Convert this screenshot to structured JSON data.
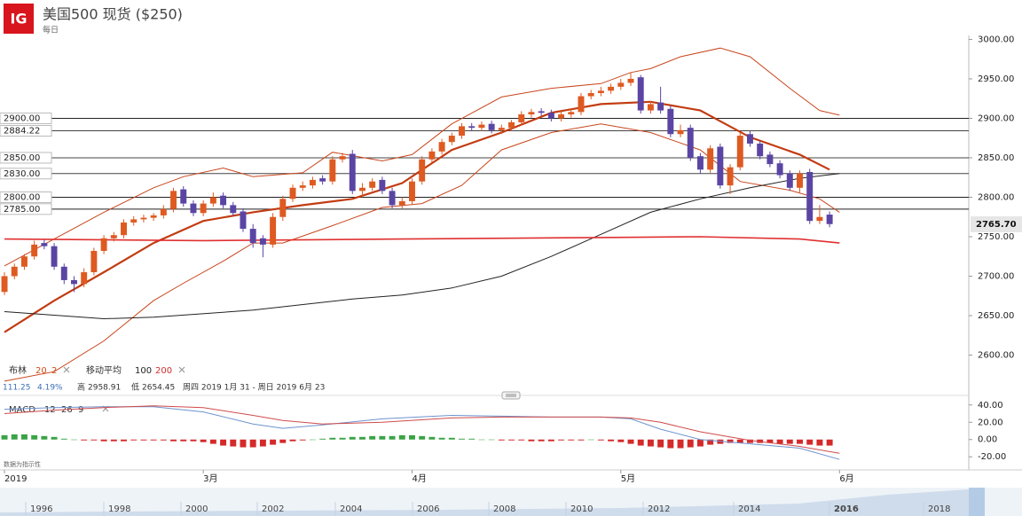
{
  "ui": {
    "logo": "IG",
    "title": "美国500 现货 ($250)",
    "subtitle": "每日",
    "legend_bb": "布林",
    "legend_bb_period": 20,
    "legend_bb_dev": 2,
    "legend_ma": "移动平均",
    "legend_ma_fast": 100,
    "legend_ma_slow": 200,
    "stats_change": "111.25",
    "stats_pct": "4.19%",
    "stats_high_label": "高",
    "stats_high": "2958.91",
    "stats_low_label": "低",
    "stats_low": "2654.45",
    "stats_range": "周四 2019 1月 31 - 周日 2019 6月 23",
    "macd_label": "MACD",
    "macd_fast": 12,
    "macd_slow": 26,
    "macd_signal": 9,
    "note": "数据为指示性",
    "navigator_years": [
      1996,
      1998,
      2000,
      2002,
      2004,
      2006,
      2008,
      2010,
      2012,
      2014,
      2016,
      2018
    ]
  },
  "chart_data": [
    {
      "type": "candlestick",
      "up_color": "#de5a21",
      "down_color": "#5a45a4",
      "xlim": [
        -0.45,
        97
      ],
      "ylim": [
        2550,
        3005
      ],
      "xticks": [
        {
          "value": 0,
          "label": "2019"
        },
        {
          "value": 20,
          "label": "3月"
        },
        {
          "value": 41,
          "label": "4月"
        },
        {
          "value": 62,
          "label": "5月"
        },
        {
          "value": 84,
          "label": "6月"
        }
      ],
      "yticks": [
        {
          "value": 2600,
          "label": "2600.00"
        },
        {
          "value": 2650,
          "label": "2650.00"
        },
        {
          "value": 2700,
          "label": "2700.00"
        },
        {
          "value": 2750,
          "label": "2750.00"
        },
        {
          "value": 2800,
          "label": "2800.00"
        },
        {
          "value": 2850,
          "label": "2850.00"
        },
        {
          "value": 2900,
          "label": "2900.00"
        },
        {
          "value": 2950,
          "label": "2950.00"
        },
        {
          "value": 3000,
          "label": "3000.00"
        }
      ],
      "levels": [
        {
          "value": 2900,
          "label": "2900.00",
          "color": "#222"
        },
        {
          "value": 2884.22,
          "label": "2884.22",
          "color": "#444"
        },
        {
          "value": 2850,
          "label": "2850.00",
          "color": "#444"
        },
        {
          "value": 2830,
          "label": "2830.00",
          "color": "#444"
        },
        {
          "value": 2800,
          "label": "2800.00",
          "color": "#222"
        },
        {
          "value": 2785,
          "label": "2785.00",
          "color": "#222"
        }
      ],
      "last": {
        "value": 2765.7,
        "label": "2765.70"
      },
      "open": [
        2680,
        2700,
        2712,
        2725,
        2742,
        2738,
        2712,
        2695,
        2690,
        2705,
        2732,
        2748,
        2752,
        2768,
        2772,
        2774,
        2777,
        2785,
        2810,
        2792,
        2780,
        2792,
        2802,
        2790,
        2782,
        2760,
        2748,
        2740,
        2775,
        2798,
        2812,
        2815,
        2824,
        2820,
        2848,
        2855,
        2808,
        2812,
        2822,
        2808,
        2790,
        2795,
        2820,
        2848,
        2858,
        2870,
        2878,
        2890,
        2888,
        2893,
        2885,
        2888,
        2895,
        2905,
        2909,
        2907,
        2900,
        2905,
        2908,
        2928,
        2932,
        2935,
        2940,
        2945,
        2952,
        2910,
        2920,
        2912,
        2880,
        2888,
        2852,
        2835,
        2864,
        2815,
        2838,
        2880,
        2868,
        2854,
        2843,
        2830,
        2812,
        2832,
        2770,
        2778
      ],
      "high": [
        2705,
        2716,
        2728,
        2745,
        2746,
        2742,
        2716,
        2700,
        2710,
        2736,
        2752,
        2756,
        2772,
        2776,
        2778,
        2780,
        2790,
        2812,
        2814,
        2796,
        2796,
        2806,
        2806,
        2794,
        2786,
        2766,
        2752,
        2780,
        2802,
        2816,
        2820,
        2826,
        2828,
        2852,
        2856,
        2860,
        2818,
        2824,
        2826,
        2812,
        2800,
        2824,
        2852,
        2862,
        2874,
        2882,
        2894,
        2894,
        2896,
        2897,
        2892,
        2898,
        2909,
        2912,
        2913,
        2911,
        2909,
        2912,
        2932,
        2936,
        2940,
        2944,
        2950,
        2958,
        2955,
        2922,
        2940,
        2916,
        2892,
        2892,
        2856,
        2866,
        2868,
        2842,
        2882,
        2884,
        2872,
        2858,
        2847,
        2834,
        2834,
        2836,
        2790,
        2782
      ],
      "low": [
        2676,
        2696,
        2708,
        2721,
        2734,
        2708,
        2690,
        2680,
        2686,
        2701,
        2728,
        2744,
        2748,
        2764,
        2768,
        2770,
        2773,
        2781,
        2788,
        2776,
        2776,
        2788,
        2786,
        2776,
        2756,
        2736,
        2724,
        2736,
        2770,
        2794,
        2808,
        2811,
        2816,
        2816,
        2844,
        2804,
        2800,
        2808,
        2804,
        2786,
        2786,
        2791,
        2816,
        2844,
        2854,
        2866,
        2874,
        2884,
        2884,
        2881,
        2880,
        2884,
        2891,
        2901,
        2903,
        2896,
        2896,
        2901,
        2904,
        2924,
        2928,
        2931,
        2936,
        2941,
        2906,
        2906,
        2906,
        2876,
        2876,
        2846,
        2830,
        2831,
        2811,
        2804,
        2834,
        2864,
        2848,
        2838,
        2824,
        2808,
        2806,
        2766,
        2766,
        2762
      ],
      "close": [
        2700,
        2712,
        2725,
        2740,
        2738,
        2712,
        2695,
        2690,
        2705,
        2732,
        2748,
        2752,
        2768,
        2772,
        2774,
        2777,
        2785,
        2808,
        2792,
        2780,
        2792,
        2800,
        2790,
        2780,
        2760,
        2742,
        2740,
        2775,
        2798,
        2812,
        2815,
        2822,
        2820,
        2848,
        2852,
        2808,
        2812,
        2820,
        2808,
        2790,
        2795,
        2820,
        2848,
        2858,
        2870,
        2878,
        2890,
        2888,
        2892,
        2885,
        2888,
        2895,
        2905,
        2908,
        2907,
        2900,
        2905,
        2908,
        2928,
        2932,
        2935,
        2940,
        2945,
        2950,
        2910,
        2918,
        2910,
        2880,
        2885,
        2850,
        2835,
        2862,
        2815,
        2838,
        2878,
        2868,
        2852,
        2842,
        2828,
        2812,
        2830,
        2770,
        2775,
        2766
      ],
      "overlays": [
        {
          "color": "#c8461c",
          "width": 1,
          "x": [
            0,
            5,
            10,
            15,
            18,
            22,
            25,
            30,
            33,
            38,
            41,
            45,
            50,
            55,
            60,
            63,
            65,
            68,
            72,
            75,
            79,
            82,
            84
          ],
          "values": [
            2713,
            2747,
            2781,
            2812,
            2826,
            2837,
            2826,
            2831,
            2857,
            2846,
            2854,
            2893,
            2927,
            2938,
            2944,
            2958,
            2963,
            2978,
            2989,
            2978,
            2938,
            2910,
            2904
          ]
        },
        {
          "color": "#c8461c",
          "width": 1,
          "x": [
            0,
            5,
            10,
            15,
            18,
            22,
            25,
            28,
            33,
            38,
            42,
            46,
            50,
            55,
            60,
            65,
            70,
            74,
            79,
            82,
            84
          ],
          "values": [
            2567,
            2579,
            2618,
            2669,
            2691,
            2719,
            2742,
            2742,
            2764,
            2787,
            2792,
            2815,
            2860,
            2882,
            2893,
            2882,
            2860,
            2820,
            2809,
            2798,
            2781
          ]
        },
        {
          "color": "#c23c12",
          "width": 2.2,
          "x": [
            0,
            5,
            10,
            15,
            20,
            25,
            30,
            35,
            40,
            45,
            50,
            55,
            60,
            65,
            70,
            75,
            80,
            83
          ],
          "values": [
            2629,
            2669,
            2705,
            2742,
            2770,
            2781,
            2790,
            2798,
            2818,
            2860,
            2882,
            2907,
            2918,
            2921,
            2910,
            2876,
            2854,
            2835
          ]
        },
        {
          "color": "#222222",
          "width": 1,
          "x": [
            0,
            10,
            15,
            25,
            35,
            40,
            45,
            50,
            55,
            60,
            65,
            70,
            75,
            80,
            84
          ],
          "values": [
            2655,
            2646,
            2648,
            2657,
            2671,
            2676,
            2685,
            2700,
            2725,
            2753,
            2781,
            2798,
            2812,
            2824,
            2830
          ]
        },
        {
          "color": "#e03030",
          "width": 1.6,
          "x": [
            0,
            20,
            40,
            60,
            70,
            80,
            84
          ],
          "values": [
            2747,
            2745,
            2747,
            2749,
            2750,
            2747,
            2742
          ]
        }
      ]
    },
    {
      "type": "macd",
      "ylim": [
        -29,
        49
      ],
      "pos_color": "#3aa346",
      "neg_color": "#d42a2a",
      "yticks": [
        {
          "value": 40,
          "label": "40.00"
        },
        {
          "value": 20,
          "label": "20.00"
        },
        {
          "value": 0,
          "label": "0.00"
        },
        {
          "value": -20,
          "label": "-20.00"
        }
      ],
      "histogram": [
        5,
        6,
        6,
        5,
        4,
        3,
        1,
        0,
        -1,
        -1,
        -2,
        -2,
        -2,
        -1,
        -1,
        -1,
        -1,
        -2,
        -2,
        -2,
        -3,
        -5,
        -7,
        -8,
        -9,
        -9,
        -8,
        -6,
        -4,
        -2,
        -1,
        0,
        1,
        2,
        2,
        3,
        3,
        4,
        4,
        4,
        5,
        5,
        4,
        3,
        2,
        2,
        1,
        1,
        0,
        0,
        -1,
        -1,
        -1,
        -2,
        -2,
        -2,
        -1,
        -1,
        -1,
        0,
        -1,
        -2,
        -3,
        -5,
        -7,
        -8,
        -9,
        -10,
        -10,
        -9,
        -8,
        -6,
        -5,
        -4,
        -4,
        -4,
        -4,
        -4,
        -5,
        -5,
        -5,
        -6,
        -7,
        -7
      ],
      "series": [
        {
          "color": "#6d93cf",
          "x": [
            0,
            5,
            10,
            15,
            20,
            25,
            28,
            32,
            38,
            45,
            50,
            55,
            60,
            63,
            66,
            70,
            75,
            80,
            84
          ],
          "values": [
            35,
            37,
            38,
            38,
            32,
            18,
            13,
            17,
            24,
            28,
            27,
            26,
            26,
            24,
            12,
            0,
            -5,
            -10,
            -23
          ]
        },
        {
          "color": "#d04a4a",
          "x": [
            0,
            5,
            10,
            15,
            20,
            25,
            28,
            32,
            38,
            45,
            50,
            55,
            60,
            63,
            66,
            70,
            75,
            80,
            84
          ],
          "values": [
            30,
            34,
            37,
            39,
            37,
            28,
            22,
            18,
            20,
            25,
            26,
            26,
            26,
            25,
            20,
            9,
            -1,
            -8,
            -16
          ]
        }
      ]
    }
  ]
}
